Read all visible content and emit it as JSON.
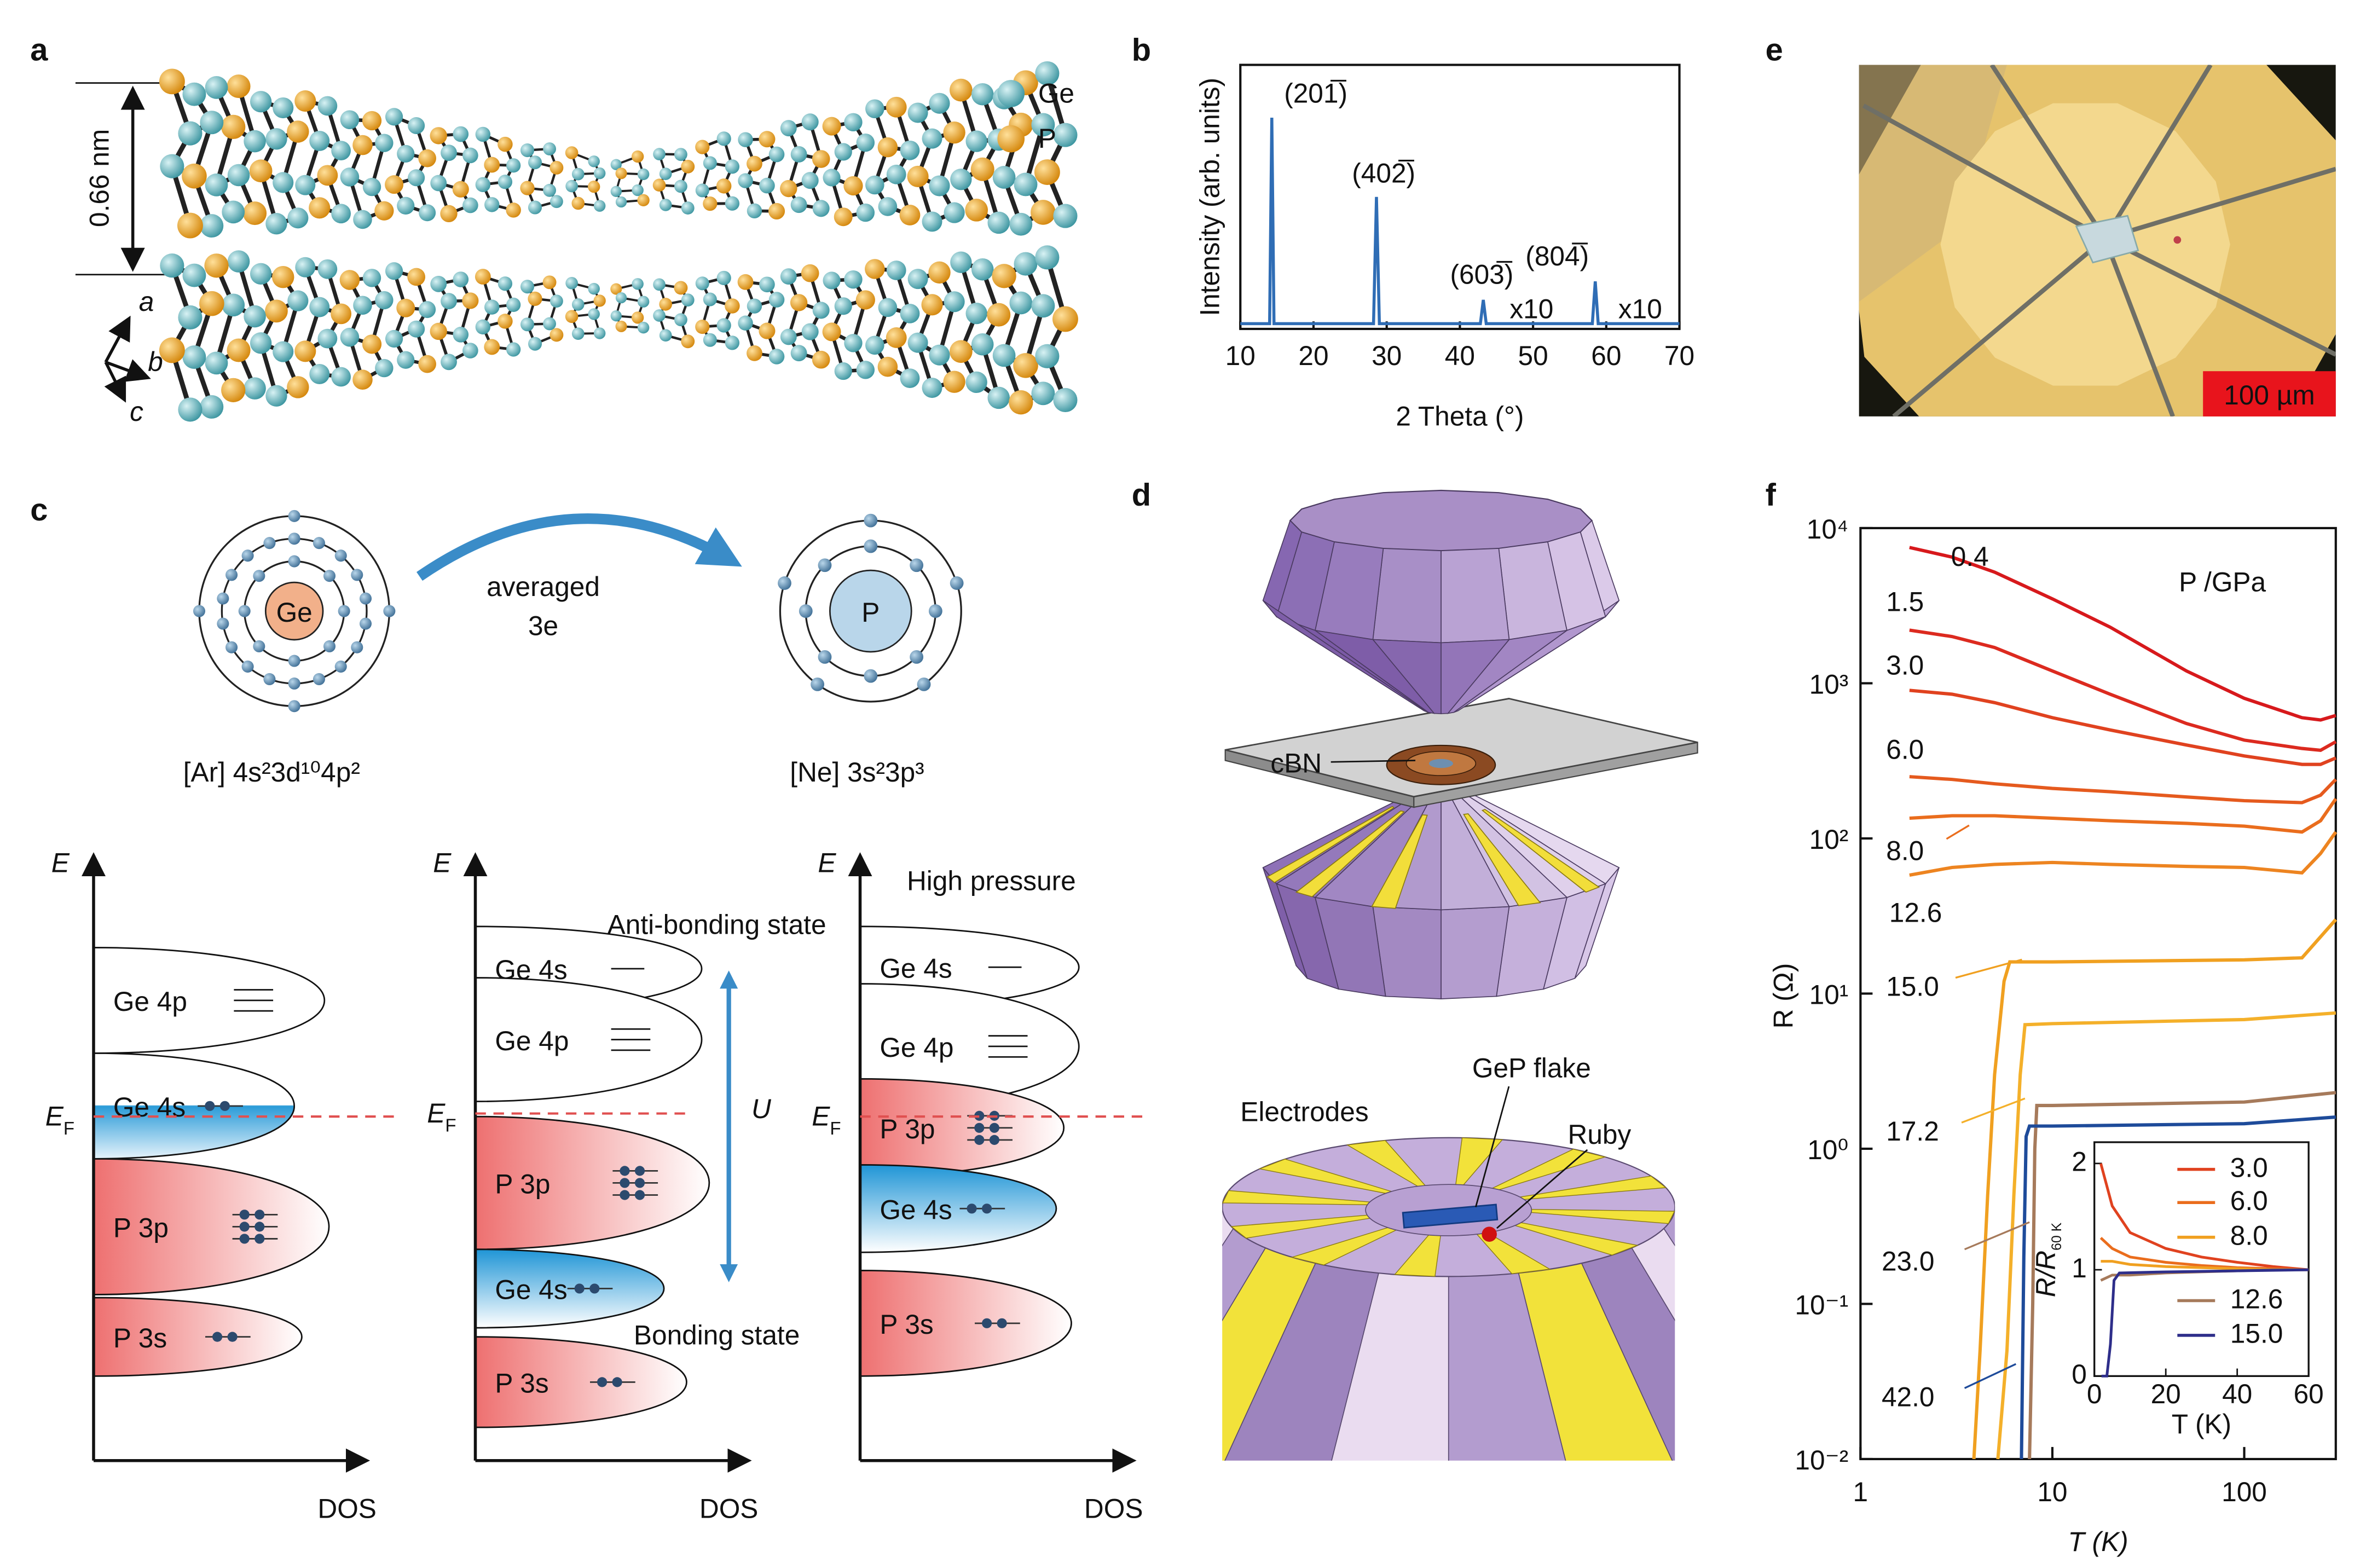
{
  "panel_labels": [
    "a",
    "b",
    "c",
    "d",
    "e",
    "f"
  ],
  "structure": {
    "spacing": "0.66 nm",
    "legend": [
      "Ge",
      "P"
    ],
    "axes": [
      "a",
      "b",
      "c"
    ]
  },
  "electron_config": {
    "ge_symbol": "Ge",
    "p_symbol": "P",
    "arrow_label": [
      "averaged",
      "3e"
    ],
    "ge_config": "[Ar] 4s²3d¹⁰4p²",
    "p_config": "[Ne] 3s²3p³"
  },
  "dos_diagrams": [
    {
      "energy_axis": "E",
      "dos_axis": "DOS",
      "fermi": {
        "symbol": "E",
        "subscript": "F"
      },
      "bands": [
        "Ge 4p",
        "Ge 4s",
        "P 3p",
        "P 3s"
      ]
    },
    {
      "energy_axis": "E",
      "dos_axis": "DOS",
      "fermi": {
        "symbol": "E",
        "subscript": "F"
      },
      "bands": [
        "Ge 4s",
        "Ge 4p",
        "P 3p",
        "Ge 4s",
        "P 3s"
      ],
      "annotations": {
        "top": "Anti-bonding state",
        "gap": "U",
        "bottom": "Bonding state"
      }
    },
    {
      "energy_axis": "E",
      "dos_axis": "DOS",
      "fermi": {
        "symbol": "E",
        "subscript": "F"
      },
      "bands": [
        "Ge 4s",
        "Ge 4p",
        "P 3p",
        "Ge 4s",
        "P 3s"
      ],
      "title": "High pressure"
    }
  ],
  "anvil_cell": {
    "gasket": "cBN",
    "electrodes": "Electrodes",
    "sample": "GeP flake",
    "ruby": "Ruby"
  },
  "micrograph": {
    "scale_bar": "100 µm"
  },
  "chart_data": [
    {
      "type": "line",
      "xlabel": "2 Theta (°)",
      "ylabel": "Intensity (arb. units)",
      "x": [
        10,
        14,
        14.3,
        14.6,
        28.2,
        28.6,
        29,
        42.8,
        43.2,
        43.6,
        58.1,
        58.5,
        58.9,
        70
      ],
      "values": [
        2,
        2,
        80,
        2,
        2,
        50,
        2,
        2,
        11,
        2,
        2,
        18,
        2,
        2
      ],
      "color": "#2f6db5",
      "xlim": [
        10,
        70
      ],
      "xticks": [
        10,
        20,
        30,
        40,
        50,
        60,
        70
      ],
      "ylim": [
        0,
        100
      ],
      "annotations": [
        "(201̅)",
        "(402̅)",
        "(603̅)",
        "(804̅)"
      ],
      "scale_labels": [
        "x10",
        "x10"
      ],
      "scale_label_color": "#f0a020"
    },
    {
      "type": "line",
      "xlabel": "T (K)",
      "ylabel": "R (Ω)",
      "legend_title": "P /GPa",
      "log_x": true,
      "log_y": true,
      "xlim": [
        1,
        300
      ],
      "xticks": [
        1,
        10,
        100
      ],
      "ylim": [
        0.01,
        10000
      ],
      "yticks": [
        {
          "value": 0.01,
          "label": "10⁻²"
        },
        {
          "value": 0.1,
          "label": "10⁻¹"
        },
        {
          "value": 1,
          "label": "10⁰"
        },
        {
          "value": 10,
          "label": "10¹"
        },
        {
          "value": 100,
          "label": "10²"
        },
        {
          "value": 1000,
          "label": "10³"
        },
        {
          "value": 10000,
          "label": "10⁴"
        }
      ],
      "series": [
        {
          "name": "0.4",
          "color": "#d7191c",
          "x": [
            1.8,
            3,
            5,
            10,
            20,
            50,
            100,
            200,
            250,
            300
          ],
          "values": [
            7500,
            6500,
            5200,
            3500,
            2300,
            1200,
            800,
            600,
            580,
            620
          ]
        },
        {
          "name": "1.5",
          "color": "#dc2a1f",
          "x": [
            1.8,
            3,
            5,
            10,
            20,
            50,
            100,
            200,
            250,
            300
          ],
          "values": [
            2200,
            2000,
            1700,
            1200,
            850,
            550,
            430,
            380,
            370,
            420
          ]
        },
        {
          "name": "3.0",
          "color": "#e0421f",
          "x": [
            1.8,
            3,
            5,
            10,
            20,
            50,
            100,
            200,
            250,
            300
          ],
          "values": [
            900,
            850,
            750,
            600,
            500,
            400,
            340,
            300,
            300,
            330
          ]
        },
        {
          "name": "6.0",
          "color": "#e55a1e",
          "x": [
            1.8,
            3,
            5,
            10,
            20,
            50,
            100,
            200,
            250,
            300
          ],
          "values": [
            250,
            240,
            225,
            210,
            200,
            185,
            175,
            170,
            190,
            240
          ]
        },
        {
          "name": "8.0",
          "color": "#ea6d1d",
          "x": [
            1.8,
            3,
            5,
            10,
            20,
            50,
            100,
            200,
            250,
            300
          ],
          "values": [
            135,
            140,
            140,
            135,
            130,
            125,
            120,
            110,
            130,
            180
          ]
        },
        {
          "name": "12.6",
          "color": "#ed8420",
          "x": [
            1.8,
            3,
            5,
            10,
            20,
            50,
            100,
            200,
            250,
            300
          ],
          "values": [
            58,
            65,
            68,
            70,
            68,
            66,
            65,
            60,
            80,
            110
          ]
        },
        {
          "name": "15.0",
          "color": "#f0a020",
          "x": [
            3.9,
            4.2,
            4.6,
            5,
            5.6,
            6,
            10,
            100,
            200,
            300
          ],
          "values": [
            0.01,
            0.05,
            0.5,
            3,
            12,
            16,
            16,
            16.5,
            17,
            30
          ]
        },
        {
          "name": "17.2",
          "color": "#f4b02a",
          "x": [
            5.2,
            5.8,
            6.3,
            6.8,
            7.2,
            10,
            100,
            300
          ],
          "values": [
            0.01,
            0.05,
            0.5,
            3,
            6.3,
            6.4,
            6.8,
            7.5
          ]
        },
        {
          "name": "23.0",
          "color": "#a67a5b",
          "x": [
            7.6,
            7.9,
            8.1,
            8.3,
            10,
            100,
            300
          ],
          "values": [
            0.01,
            0.1,
            1,
            1.9,
            1.9,
            2.0,
            2.3
          ]
        },
        {
          "name": "42.0",
          "color": "#1e4b9a",
          "x": [
            6.9,
            7.1,
            7.3,
            7.6,
            10,
            100,
            300
          ],
          "values": [
            0.01,
            0.2,
            1.2,
            1.4,
            1.4,
            1.45,
            1.6
          ]
        }
      ]
    },
    {
      "type": "line",
      "xlabel": "T (K)",
      "ylabel": {
        "main": "R/R",
        "sub": "60 K"
      },
      "xlim": [
        0,
        60
      ],
      "xticks": [
        0,
        20,
        40,
        60
      ],
      "ylim": [
        0,
        2.2
      ],
      "yticks": [
        0,
        1,
        2
      ],
      "series": [
        {
          "name": "3.0",
          "color": "#e0421f",
          "x": [
            1.8,
            5,
            10,
            20,
            30,
            40,
            50,
            60
          ],
          "values": [
            2.0,
            1.6,
            1.35,
            1.2,
            1.12,
            1.07,
            1.03,
            1.0
          ]
        },
        {
          "name": "6.0",
          "color": "#ea6d1d",
          "x": [
            1.8,
            5,
            10,
            20,
            30,
            40,
            50,
            60
          ],
          "values": [
            1.3,
            1.2,
            1.12,
            1.07,
            1.04,
            1.02,
            1.01,
            1.0
          ]
        },
        {
          "name": "8.0",
          "color": "#f0a020",
          "x": [
            1.8,
            5,
            10,
            20,
            30,
            40,
            50,
            60
          ],
          "values": [
            1.08,
            1.08,
            1.05,
            1.03,
            1.02,
            1.01,
            1.0,
            1.0
          ]
        },
        {
          "name": "12.6",
          "color": "#a67a5b",
          "x": [
            1.8,
            5,
            10,
            20,
            30,
            40,
            50,
            60
          ],
          "values": [
            0.9,
            0.95,
            0.95,
            0.97,
            0.98,
            0.99,
            1.0,
            1.0
          ]
        },
        {
          "name": "15.0",
          "color": "#2e2e8a",
          "x": [
            2,
            3.5,
            4.5,
            5.5,
            7,
            20,
            60
          ],
          "values": [
            0,
            0,
            0.3,
            0.9,
            0.97,
            0.98,
            1.0
          ]
        }
      ]
    }
  ]
}
